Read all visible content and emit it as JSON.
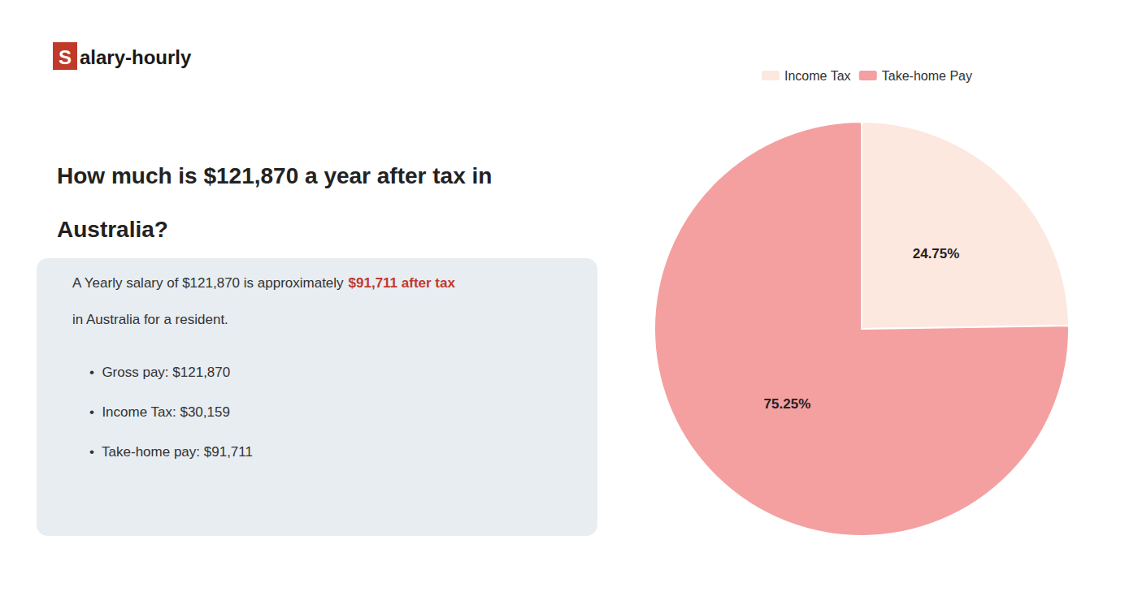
{
  "chart_data": {
    "type": "pie",
    "title": "How much is $121,870 a year after tax in\nAustralia?",
    "categories": [
      "Income Tax",
      "Take-home Pay"
    ],
    "values": [
      24.75,
      75.25
    ],
    "value_labels": [
      "24.75%",
      "75.25%"
    ],
    "colors": [
      "#fce8df",
      "#f4a0a0"
    ],
    "data_labels": true,
    "legend": "top",
    "annotations": [
      {
        "text": "S",
        "color": "#c0392b"
      },
      {
        "text": "alary-hourly"
      },
      {
        "text": "A Yearly salary of $121,870 is approximately "
      },
      {
        "text": "$91,711 after tax",
        "color": "#c0392b"
      },
      {
        "text": "in Australia for a resident."
      },
      {
        "text": "•  Gross pay: $121,870"
      },
      {
        "text": "•  Income Tax: $30,159"
      },
      {
        "text": "•  Take-home pay: $91,711"
      }
    ]
  }
}
